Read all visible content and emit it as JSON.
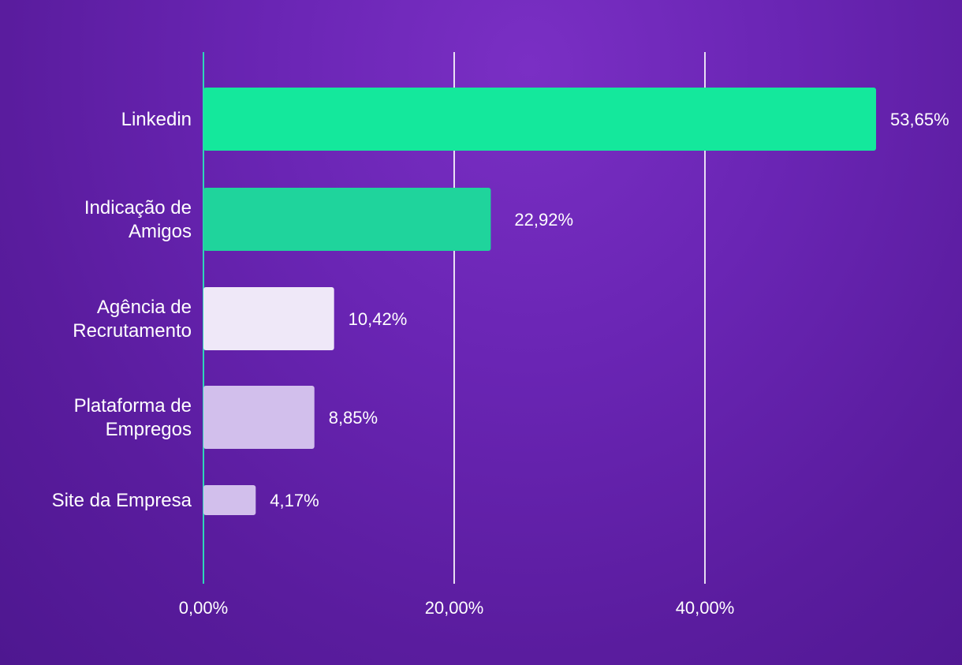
{
  "chart_data": {
    "type": "bar",
    "orientation": "horizontal",
    "categories": [
      [
        "Linkedin"
      ],
      [
        "Indicação de",
        "Amigos"
      ],
      [
        "Agência de",
        "Recrutamento"
      ],
      [
        "Plataforma de",
        "Empregos"
      ],
      [
        "Site da Empresa"
      ]
    ],
    "values": [
      53.65,
      22.92,
      10.42,
      8.85,
      4.17
    ],
    "value_labels": [
      "53,65%",
      "22,92%",
      "10,42%",
      "8,85%",
      "4,17%"
    ],
    "bar_colors": [
      "#14e89c",
      "#1fd49c",
      "#efe8f8",
      "#d2bfec",
      "#d2bfec"
    ],
    "xticks": [
      0,
      20,
      40
    ],
    "xtick_labels": [
      "0,00%",
      "20,00%",
      "40,00%"
    ],
    "xlim": [
      0,
      60
    ],
    "grid": true,
    "axis_color": "#2fd6b8",
    "grid_color": "#ffffff"
  }
}
